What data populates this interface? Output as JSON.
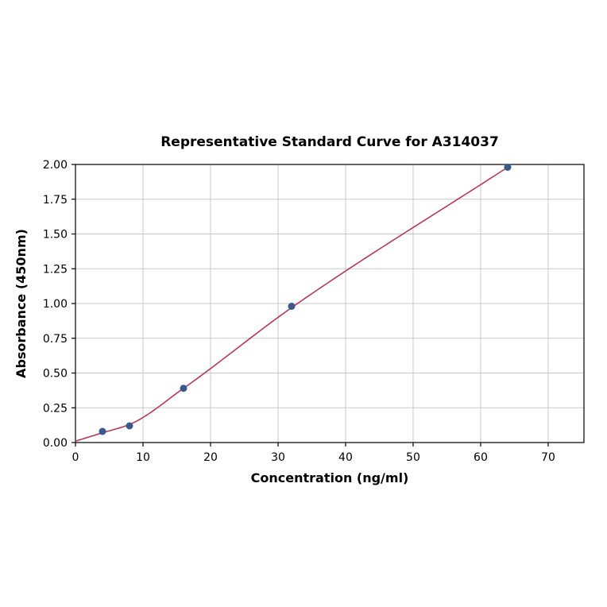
{
  "page": {
    "background": "#ffffff"
  },
  "chart_data": {
    "type": "scatter",
    "title": "Representative Standard Curve for A314037",
    "xlabel": "Concentration (ng/ml)",
    "ylabel": "Absorbance (450nm)",
    "xlim": [
      0,
      75.3
    ],
    "ylim": [
      0,
      2.0
    ],
    "xticks": [
      0,
      10,
      20,
      30,
      40,
      50,
      60,
      70
    ],
    "xtick_labels": [
      "0",
      "10",
      "20",
      "30",
      "40",
      "50",
      "60",
      "70"
    ],
    "yticks": [
      0.0,
      0.25,
      0.5,
      0.75,
      1.0,
      1.25,
      1.5,
      1.75,
      2.0
    ],
    "ytick_labels": [
      "0.00",
      "0.25",
      "0.50",
      "0.75",
      "1.00",
      "1.25",
      "1.50",
      "1.75",
      "2.00"
    ],
    "grid": true,
    "legend": "none",
    "points": {
      "x": [
        4,
        8,
        16,
        32,
        64
      ],
      "y": [
        0.08,
        0.12,
        0.39,
        0.98,
        1.98
      ]
    },
    "curve": {
      "x": [
        0,
        4,
        8,
        16,
        32,
        64
      ],
      "y": [
        0.01,
        0.07,
        0.13,
        0.39,
        0.97,
        1.98
      ]
    },
    "colors": {
      "curve": "#b23a5c",
      "marker": "#3a5a8c",
      "grid": "#c8c8c8",
      "axis": "#000000"
    }
  }
}
